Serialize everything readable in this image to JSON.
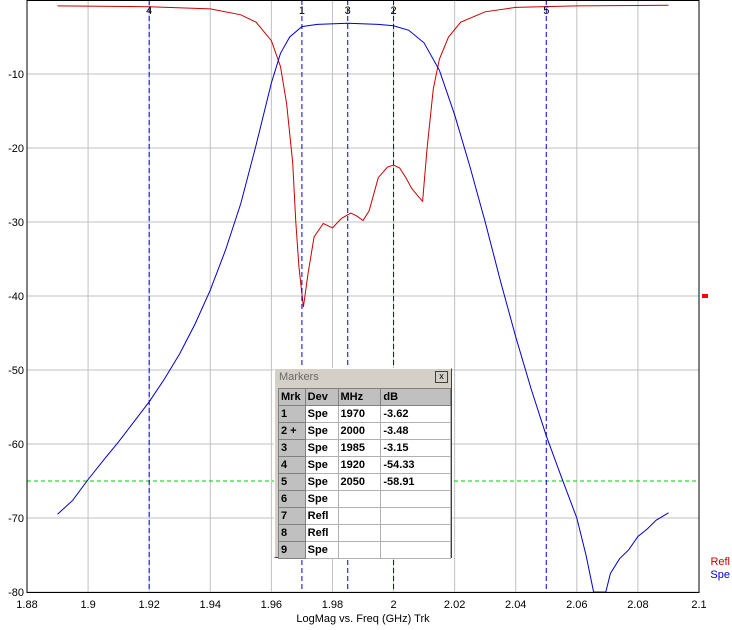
{
  "chart_data": {
    "type": "line",
    "xlabel": "LogMag vs. Freq (GHz)  Trk",
    "xlim": [
      1.88,
      2.1
    ],
    "ylim": [
      -80,
      0
    ],
    "xticks": [
      "1.88",
      "1.9",
      "1.92",
      "1.94",
      "1.96",
      "1.98",
      "2",
      "2.02",
      "2.04",
      "2.06",
      "2.08",
      "2.1"
    ],
    "yticks": [
      "-10",
      "-20",
      "-30",
      "-40",
      "-50",
      "-60",
      "-70",
      "-80"
    ],
    "grid": true,
    "series": [
      {
        "name": "Refl",
        "color": "#cc0000",
        "points": [
          [
            1.89,
            -0.8
          ],
          [
            1.92,
            -0.9
          ],
          [
            1.94,
            -1.2
          ],
          [
            1.95,
            -2.0
          ],
          [
            1.955,
            -3.0
          ],
          [
            1.96,
            -5.5
          ],
          [
            1.963,
            -9
          ],
          [
            1.965,
            -14
          ],
          [
            1.967,
            -22
          ],
          [
            1.968,
            -30
          ],
          [
            1.969,
            -36
          ],
          [
            1.9705,
            -41.5
          ],
          [
            1.972,
            -37
          ],
          [
            1.974,
            -32
          ],
          [
            1.977,
            -30.2
          ],
          [
            1.98,
            -30.8
          ],
          [
            1.983,
            -29.5
          ],
          [
            1.986,
            -28.8
          ],
          [
            1.988,
            -29.2
          ],
          [
            1.99,
            -29.8
          ],
          [
            1.992,
            -28.5
          ],
          [
            1.995,
            -24
          ],
          [
            1.998,
            -22.6
          ],
          [
            2.0,
            -22.3
          ],
          [
            2.002,
            -22.7
          ],
          [
            2.004,
            -24
          ],
          [
            2.006,
            -25.5
          ],
          [
            2.008,
            -26.5
          ],
          [
            2.0095,
            -27.2
          ],
          [
            2.011,
            -20
          ],
          [
            2.013,
            -12
          ],
          [
            2.015,
            -8
          ],
          [
            2.018,
            -5
          ],
          [
            2.022,
            -3
          ],
          [
            2.03,
            -1.6
          ],
          [
            2.04,
            -1.0
          ],
          [
            2.06,
            -0.8
          ],
          [
            2.09,
            -0.7
          ]
        ]
      },
      {
        "name": "Spe",
        "color": "#0000cc",
        "points": [
          [
            1.89,
            -69.5
          ],
          [
            1.895,
            -67.6
          ],
          [
            1.9,
            -64.8
          ],
          [
            1.905,
            -62.2
          ],
          [
            1.91,
            -59.7
          ],
          [
            1.915,
            -57.0
          ],
          [
            1.92,
            -54.3
          ],
          [
            1.925,
            -51.2
          ],
          [
            1.93,
            -47.8
          ],
          [
            1.935,
            -43.8
          ],
          [
            1.94,
            -39.2
          ],
          [
            1.945,
            -33.8
          ],
          [
            1.95,
            -27.5
          ],
          [
            1.955,
            -19.6
          ],
          [
            1.96,
            -11.2
          ],
          [
            1.963,
            -7.2
          ],
          [
            1.966,
            -5.0
          ],
          [
            1.97,
            -3.6
          ],
          [
            1.975,
            -3.3
          ],
          [
            1.985,
            -3.15
          ],
          [
            1.995,
            -3.3
          ],
          [
            2.0,
            -3.48
          ],
          [
            2.005,
            -4.1
          ],
          [
            2.01,
            -5.8
          ],
          [
            2.015,
            -9.5
          ],
          [
            2.02,
            -15.5
          ],
          [
            2.025,
            -22.5
          ],
          [
            2.03,
            -30.0
          ],
          [
            2.035,
            -38.0
          ],
          [
            2.04,
            -45.5
          ],
          [
            2.045,
            -52.5
          ],
          [
            2.05,
            -58.9
          ],
          [
            2.055,
            -64.5
          ],
          [
            2.06,
            -70
          ],
          [
            2.063,
            -75
          ],
          [
            2.065,
            -79
          ],
          [
            2.0655,
            -80
          ],
          [
            2.0695,
            -80
          ],
          [
            2.071,
            -77.5
          ],
          [
            2.074,
            -75.5
          ],
          [
            2.077,
            -74.3
          ],
          [
            2.08,
            -72.5
          ],
          [
            2.083,
            -71.5
          ],
          [
            2.086,
            -70.3
          ],
          [
            2.09,
            -69.3
          ]
        ]
      }
    ],
    "limit_line": {
      "y": -65,
      "color": "#00cc00"
    },
    "markers": [
      {
        "label": "1",
        "x": 1.97
      },
      {
        "label": "3",
        "x": 1.985
      },
      {
        "label": "2",
        "x": 2.0
      },
      {
        "label": "4",
        "x": 1.92
      },
      {
        "label": "5",
        "x": 2.05
      }
    ],
    "ref_indicator": {
      "y": -40,
      "color": "#ff0000"
    },
    "legend": {
      "placement": "bottom-right"
    }
  },
  "markers_window": {
    "title": "Markers",
    "close_label": "x",
    "columns": [
      "Mrk",
      "Dev",
      "MHz",
      "dB"
    ],
    "rows": [
      {
        "mrk": "1",
        "dev": "Spe",
        "mhz": "1970",
        "db": "-3.62"
      },
      {
        "mrk": "2 +",
        "dev": "Spe",
        "mhz": "2000",
        "db": "-3.48"
      },
      {
        "mrk": "3",
        "dev": "Spe",
        "mhz": "1985",
        "db": "-3.15"
      },
      {
        "mrk": "4",
        "dev": "Spe",
        "mhz": "1920",
        "db": "-54.33"
      },
      {
        "mrk": "5",
        "dev": "Spe",
        "mhz": "2050",
        "db": "-58.91"
      },
      {
        "mrk": "6",
        "dev": "Spe",
        "mhz": "",
        "db": ""
      },
      {
        "mrk": "7",
        "dev": "Refl",
        "mhz": "",
        "db": ""
      },
      {
        "mrk": "8",
        "dev": "Refl",
        "mhz": "",
        "db": ""
      },
      {
        "mrk": "9",
        "dev": "Spe",
        "mhz": "",
        "db": ""
      }
    ]
  }
}
